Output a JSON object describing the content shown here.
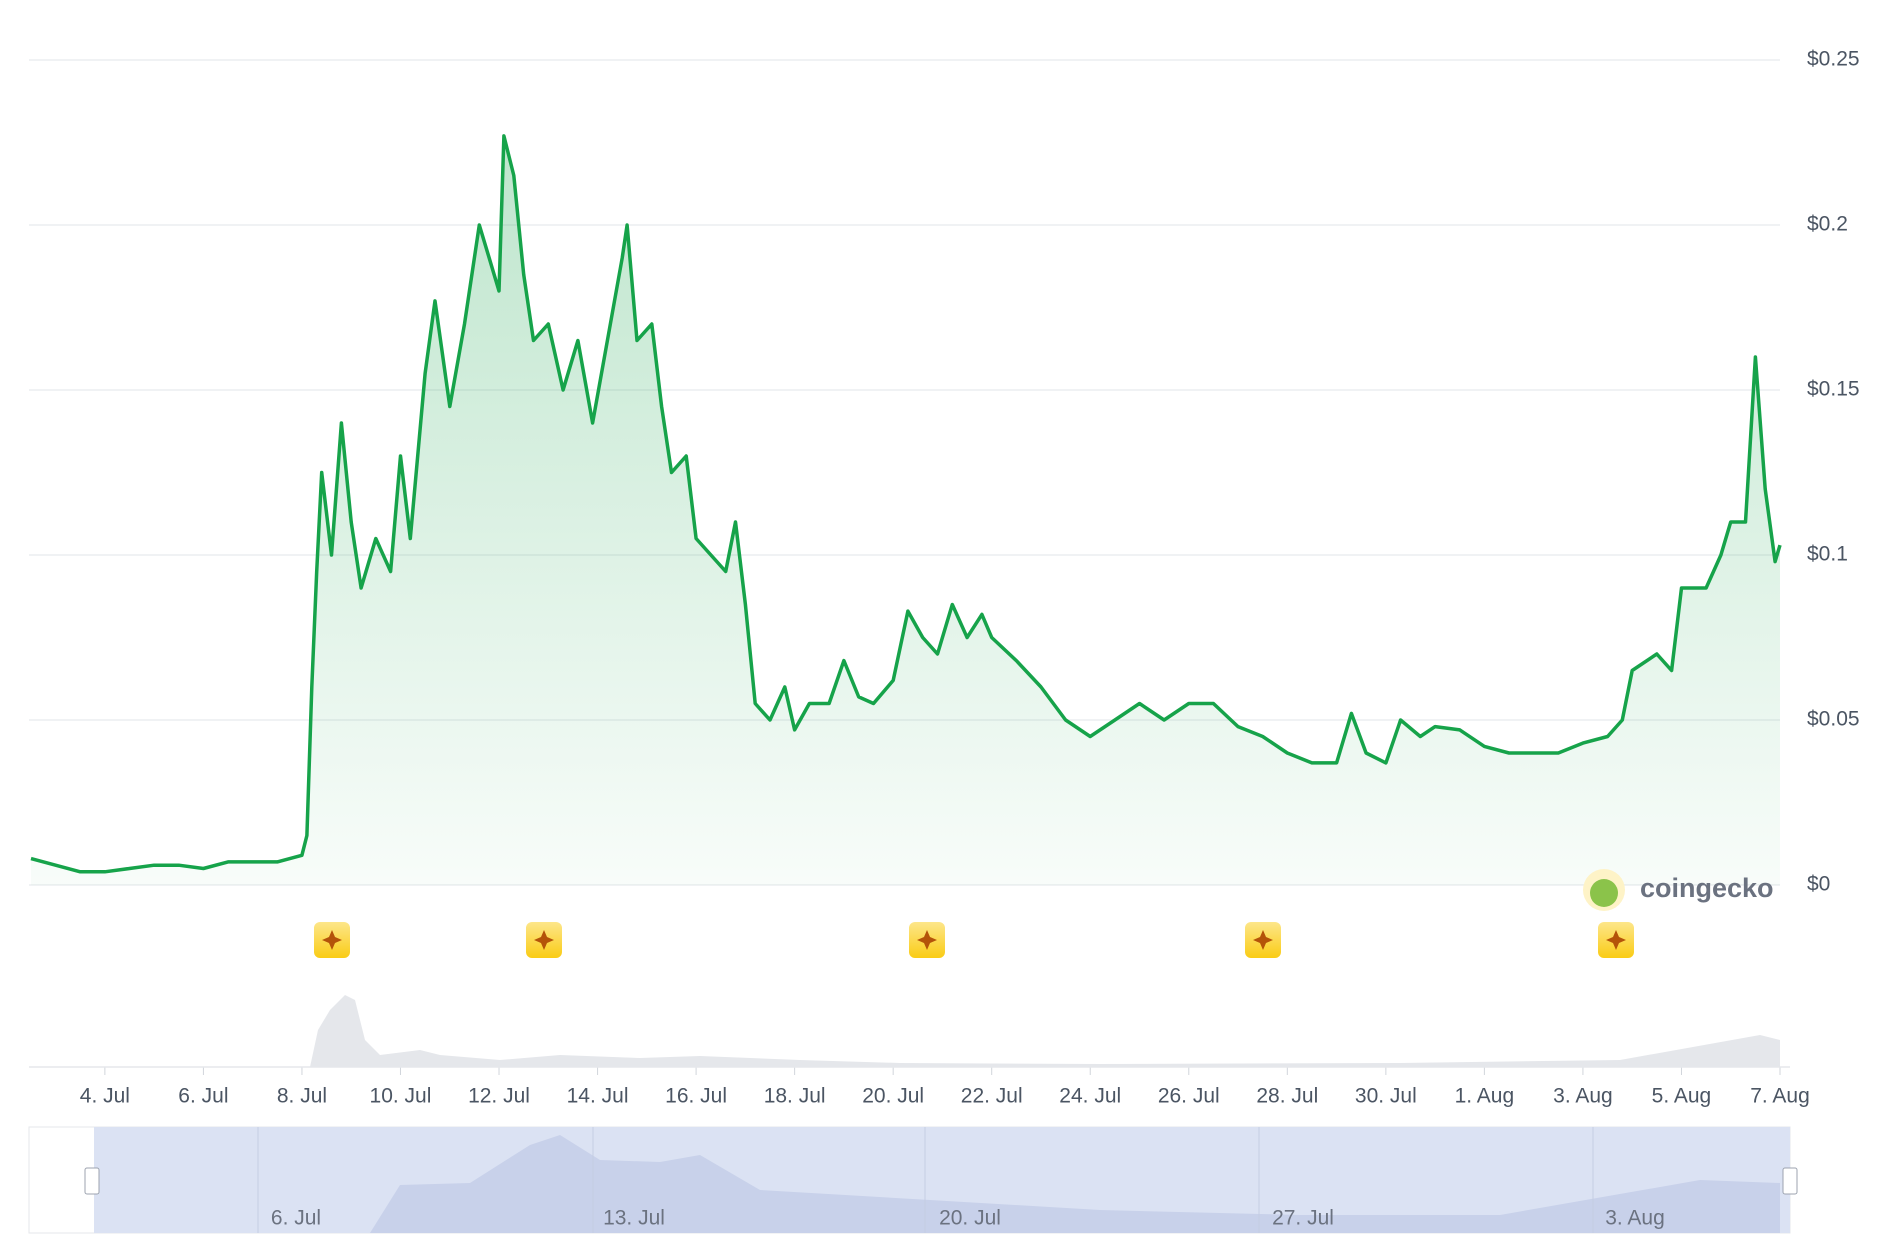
{
  "chart_data": {
    "type": "line",
    "x": [
      2.5,
      3,
      3.5,
      4,
      4.5,
      5,
      5.5,
      6,
      6.5,
      7,
      7.5,
      8,
      8.1,
      8.2,
      8.3,
      8.4,
      8.6,
      8.8,
      9,
      9.2,
      9.5,
      9.8,
      10,
      10.2,
      10.5,
      10.7,
      11,
      11.3,
      11.6,
      11.8,
      12,
      12.1,
      12.3,
      12.5,
      12.7,
      13,
      13.3,
      13.6,
      13.9,
      14.2,
      14.5,
      14.6,
      14.8,
      15.1,
      15.3,
      15.5,
      15.8,
      16,
      16.3,
      16.6,
      16.8,
      17,
      17.2,
      17.5,
      17.8,
      18,
      18.3,
      18.7,
      19,
      19.3,
      19.6,
      20,
      20.3,
      20.6,
      20.9,
      21.2,
      21.5,
      21.8,
      22,
      22.5,
      23,
      23.5,
      24,
      24.5,
      25,
      25.5,
      26,
      26.5,
      27,
      27.5,
      28,
      28.5,
      29,
      29.3,
      29.6,
      30,
      30.3,
      30.7,
      31,
      31.5,
      32,
      32.5,
      33,
      33.5,
      34,
      34.5,
      34.8,
      35,
      35.5,
      35.8,
      36,
      36.5,
      36.8,
      37,
      37.3,
      37.5,
      37.7,
      37.9,
      38
    ],
    "values": [
      0.008,
      0.006,
      0.004,
      0.004,
      0.005,
      0.006,
      0.006,
      0.005,
      0.007,
      0.007,
      0.007,
      0.009,
      0.015,
      0.06,
      0.095,
      0.125,
      0.1,
      0.14,
      0.11,
      0.09,
      0.105,
      0.095,
      0.13,
      0.105,
      0.155,
      0.177,
      0.145,
      0.17,
      0.2,
      0.19,
      0.18,
      0.227,
      0.215,
      0.185,
      0.165,
      0.17,
      0.15,
      0.165,
      0.14,
      0.165,
      0.19,
      0.2,
      0.165,
      0.17,
      0.145,
      0.125,
      0.13,
      0.105,
      0.1,
      0.095,
      0.11,
      0.085,
      0.055,
      0.05,
      0.06,
      0.047,
      0.055,
      0.055,
      0.068,
      0.057,
      0.055,
      0.062,
      0.083,
      0.075,
      0.07,
      0.085,
      0.075,
      0.082,
      0.075,
      0.068,
      0.06,
      0.05,
      0.045,
      0.05,
      0.055,
      0.05,
      0.055,
      0.055,
      0.048,
      0.045,
      0.04,
      0.037,
      0.037,
      0.052,
      0.04,
      0.037,
      0.05,
      0.045,
      0.048,
      0.047,
      0.042,
      0.04,
      0.04,
      0.04,
      0.043,
      0.045,
      0.05,
      0.065,
      0.07,
      0.065,
      0.09,
      0.09,
      0.1,
      0.11,
      0.11,
      0.16,
      0.12,
      0.098,
      0.103
    ],
    "color": "#16a34a",
    "xlim": [
      2.46,
      38.0
    ],
    "xticks": [
      {
        "value": 4,
        "label": "4. Jul"
      },
      {
        "value": 6,
        "label": "6. Jul"
      },
      {
        "value": 8,
        "label": "8. Jul"
      },
      {
        "value": 10,
        "label": "10. Jul"
      },
      {
        "value": 12,
        "label": "12. Jul"
      },
      {
        "value": 14,
        "label": "14. Jul"
      },
      {
        "value": 16,
        "label": "16. Jul"
      },
      {
        "value": 18,
        "label": "18. Jul"
      },
      {
        "value": 20,
        "label": "20. Jul"
      },
      {
        "value": 22,
        "label": "22. Jul"
      },
      {
        "value": 24,
        "label": "24. Jul"
      },
      {
        "value": 26,
        "label": "26. Jul"
      },
      {
        "value": 28,
        "label": "28. Jul"
      },
      {
        "value": 30,
        "label": "30. Jul"
      },
      {
        "value": 32,
        "label": "1. Aug"
      },
      {
        "value": 34,
        "label": "3. Aug"
      },
      {
        "value": 36,
        "label": "5. Aug"
      },
      {
        "value": 38,
        "label": "7. Aug"
      }
    ],
    "ylim": [
      0,
      0.25
    ],
    "yticks": [
      {
        "value": 0,
        "label": "$0"
      },
      {
        "value": 0.05,
        "label": "$0.05"
      },
      {
        "value": 0.1,
        "label": "$0.1"
      },
      {
        "value": 0.15,
        "label": "$0.15"
      },
      {
        "value": 0.2,
        "label": "$0.2"
      },
      {
        "value": 0.25,
        "label": "$0.25"
      }
    ],
    "grid": true,
    "watermark": "coingecko",
    "navigator_labels": [
      "6. Jul",
      "13. Jul",
      "20. Jul",
      "27. Jul",
      "3. Aug"
    ]
  }
}
